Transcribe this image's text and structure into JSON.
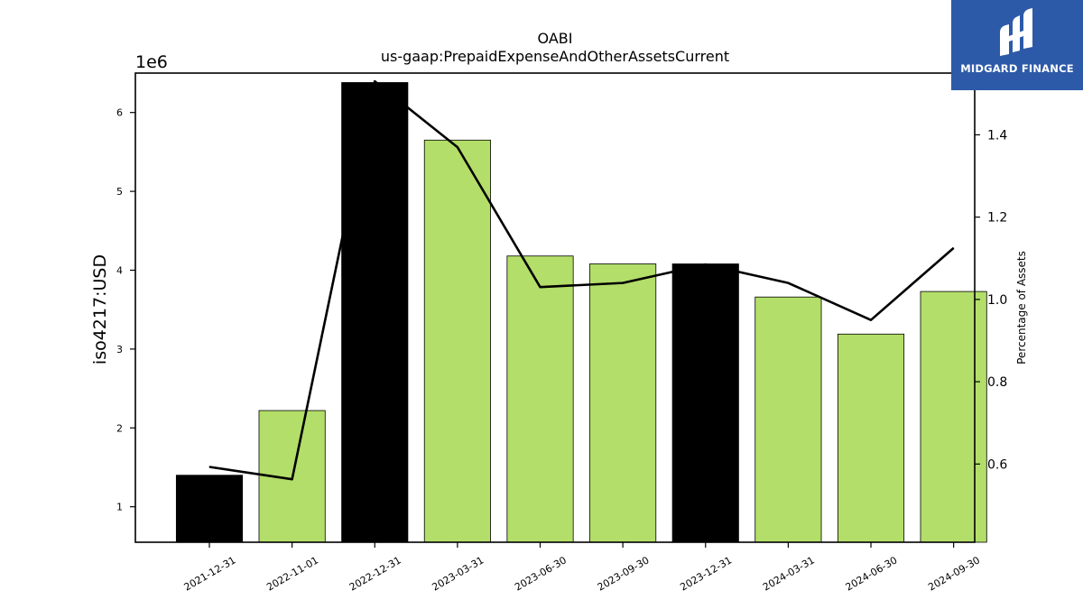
{
  "logo": {
    "text": "MIDGARD FINANCE",
    "background": "#2d5aa8"
  },
  "chart_data": {
    "type": "bar",
    "title": "OABI",
    "subtitle": "us-gaap:PrepaidExpenseAndOtherAssetsCurrent",
    "ylabel": "iso4217:USD",
    "y_offset_label": "1e6",
    "y2label": "Percentage of Assets",
    "categories": [
      "2021-12-31",
      "2022-11-01",
      "2022-12-31",
      "2023-03-31",
      "2023-06-30",
      "2023-09-30",
      "2023-12-31",
      "2024-03-31",
      "2024-06-30",
      "2024-09-30"
    ],
    "values": [
      1400000,
      2220000,
      6380000,
      5650000,
      4180000,
      4080000,
      4080000,
      3660000,
      3190000,
      3730000
    ],
    "bar_colors": [
      "#000000",
      "#b3de69",
      "#000000",
      "#b3de69",
      "#b3de69",
      "#b3de69",
      "#000000",
      "#b3de69",
      "#b3de69",
      "#b3de69"
    ],
    "line_series": {
      "values": [
        0.593,
        0.563,
        1.53,
        1.37,
        1.03,
        1.04,
        1.085,
        1.04,
        0.95,
        1.125
      ],
      "color": "#000000"
    },
    "ylim": [
      550000,
      6500000
    ],
    "y_ticks": [
      1,
      2,
      3,
      4,
      5,
      6
    ],
    "y2lim": [
      0.41,
      1.55
    ],
    "y2_ticks": [
      "0.6",
      "0.8",
      "1.0",
      "1.2",
      "1.4"
    ],
    "grid": false
  }
}
